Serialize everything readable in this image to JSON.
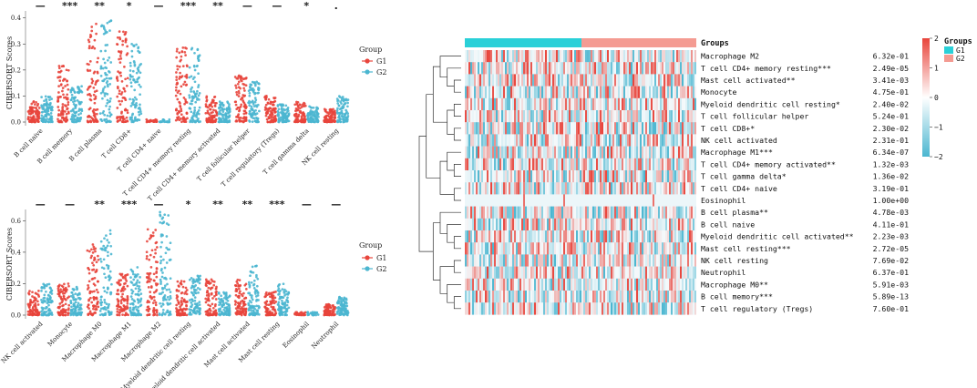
{
  "colors": {
    "g1": "#e8453c",
    "g2": "#4bb6d0",
    "heat_high": "#e8453c",
    "heat_mid": "#ffffff",
    "heat_low": "#4bb6d0"
  },
  "chart_data": [
    {
      "type": "scatter",
      "title": "",
      "ylabel": "CIBERSORT Scores",
      "xlabel": "",
      "ylim": [
        0,
        0.42
      ],
      "yticks": [
        "0.0",
        "0.1",
        "0.2",
        "0.3",
        "0.4"
      ],
      "legend": {
        "title": "Group",
        "entries": [
          "G1",
          "G2"
        ],
        "position": "right"
      },
      "categories": [
        "B cell naive",
        "B cell memory",
        "B cell plasma",
        "T cell CD8+",
        "T cell CD4+ naive",
        "T cell CD4+ memory resting",
        "T cell CD4+ memory activated",
        "T cell follicular helper",
        "T cell regulatory (Tregs)",
        "T cell gamma delta",
        "NK cell resting"
      ],
      "significance": [
        "—",
        "***",
        "**",
        "*",
        "—",
        "***",
        "**",
        "—",
        "—",
        "*",
        "."
      ],
      "series": [
        {
          "name": "G1",
          "max": [
            0.08,
            0.23,
            0.38,
            0.37,
            0.01,
            0.3,
            0.1,
            0.18,
            0.1,
            0.08,
            0.05
          ]
        },
        {
          "name": "G2",
          "max": [
            0.1,
            0.14,
            0.41,
            0.3,
            0.01,
            0.29,
            0.08,
            0.16,
            0.07,
            0.06,
            0.1
          ]
        }
      ]
    },
    {
      "type": "scatter",
      "title": "",
      "ylabel": "CIBERSORT Scores",
      "xlabel": "",
      "ylim": [
        0,
        0.66
      ],
      "yticks": [
        "0.0",
        "0.2",
        "0.4",
        "0.6"
      ],
      "legend": {
        "title": "Group",
        "entries": [
          "G1",
          "G2"
        ],
        "position": "right"
      },
      "categories": [
        "NK cell activated",
        "Monocyte",
        "Macrophage M0",
        "Macrophage M1",
        "Macrophage M2",
        "Myeloid dendritic cell resting",
        "Myeloid dendritic cell activated",
        "Mast cell activated",
        "Mast cell resting",
        "Eosinophil",
        "Neutrophil"
      ],
      "significance": [
        "—",
        "—",
        "**",
        "***",
        "—",
        "*",
        "**",
        "**",
        "***",
        "—",
        "—"
      ],
      "series": [
        {
          "name": "G1",
          "max": [
            0.16,
            0.2,
            0.45,
            0.27,
            0.56,
            0.22,
            0.23,
            0.23,
            0.16,
            0.02,
            0.07
          ]
        },
        {
          "name": "G2",
          "max": [
            0.2,
            0.18,
            0.55,
            0.31,
            0.66,
            0.26,
            0.16,
            0.32,
            0.2,
            0.02,
            0.12
          ]
        }
      ]
    },
    {
      "type": "heatmap",
      "title": "",
      "annotation_label": "Groups",
      "legend": {
        "title": "Groups",
        "entries": [
          "G1",
          "G2"
        ],
        "position": "top-right"
      },
      "colorbar_ticks": [
        "2",
        "1",
        "0",
        "−1",
        "−2"
      ],
      "rows": [
        {
          "label": "Macrophage M2",
          "p": "6.32e-01"
        },
        {
          "label": "T cell CD4+ memory resting***",
          "p": "2.49e-05"
        },
        {
          "label": "Mast cell activated**",
          "p": "3.41e-03"
        },
        {
          "label": "Monocyte",
          "p": "4.75e-01"
        },
        {
          "label": "Myeloid dendritic cell resting*",
          "p": "2.40e-02"
        },
        {
          "label": "T cell follicular helper",
          "p": "5.24e-01"
        },
        {
          "label": "T cell CD8+*",
          "p": "2.30e-02"
        },
        {
          "label": "NK cell activated",
          "p": "2.31e-01"
        },
        {
          "label": "Macrophage M1***",
          "p": "6.34e-07"
        },
        {
          "label": "T cell CD4+ memory activated**",
          "p": "1.32e-03"
        },
        {
          "label": "T cell gamma delta*",
          "p": "1.36e-02"
        },
        {
          "label": "T cell CD4+ naive",
          "p": "3.19e-01"
        },
        {
          "label": "Eosinophil",
          "p": "1.00e+00"
        },
        {
          "label": "B cell plasma**",
          "p": "4.78e-03"
        },
        {
          "label": "B cell naive",
          "p": "4.11e-01"
        },
        {
          "label": "Myeloid dendritic cell activated**",
          "p": "2.23e-03"
        },
        {
          "label": "Mast cell resting***",
          "p": "2.72e-05"
        },
        {
          "label": "NK cell resting",
          "p": "7.69e-02"
        },
        {
          "label": "Neutrophil",
          "p": "6.37e-01"
        },
        {
          "label": "Macrophage M0**",
          "p": "5.91e-03"
        },
        {
          "label": "B cell memory***",
          "p": "5.89e-13"
        },
        {
          "label": "T cell regulatory (Tregs)",
          "p": "7.60e-01"
        }
      ]
    }
  ]
}
